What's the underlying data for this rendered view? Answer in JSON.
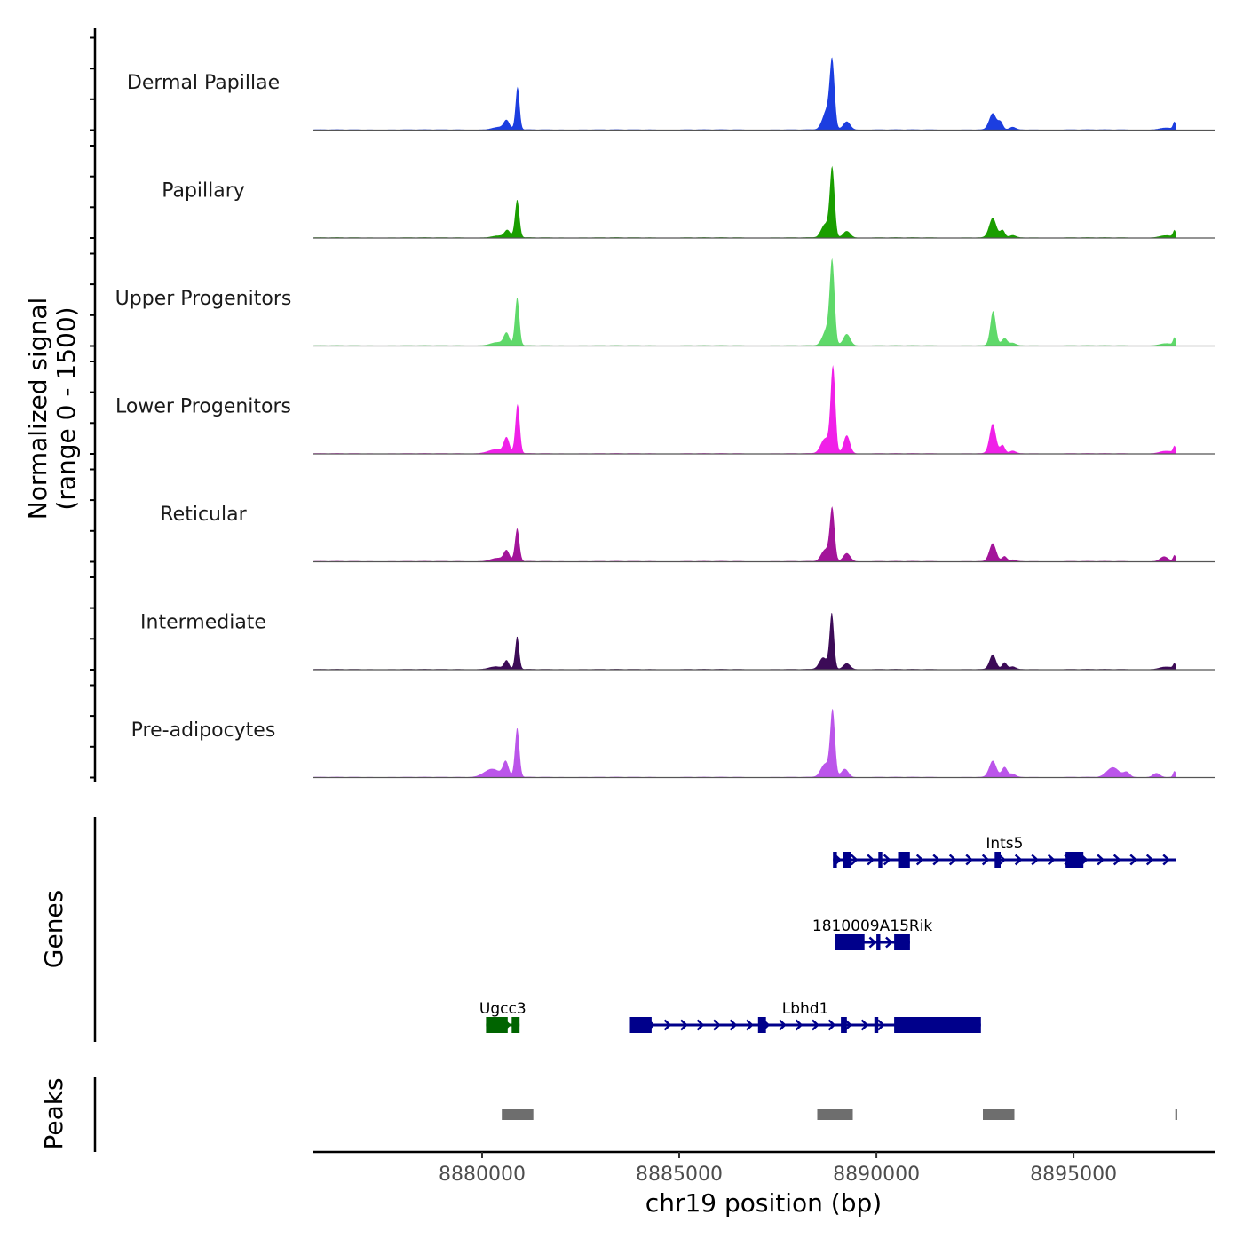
{
  "chart_data": {
    "type": "area",
    "title": "",
    "ylabel_line1": "Normalized signal",
    "ylabel_line2": "(range 0 - 1500)",
    "ylim": [
      0,
      1500
    ],
    "genes_label": "Genes",
    "peaks_label": "Peaks",
    "xlabel": "chr19 position (bp)",
    "xlim": [
      8875700,
      8898600
    ],
    "x_ticks": [
      8880000,
      8885000,
      8890000,
      8895000
    ],
    "x_tick_labels": [
      "8880000",
      "8885000",
      "8890000",
      "8895000"
    ],
    "signal_x_range": [
      8875700,
      8897600
    ],
    "tracks": [
      {
        "name": "Dermal Papillae",
        "color": "#1c3ee0",
        "peaks": [
          [
            8880450,
            8,
            180
          ],
          [
            8880620,
            25,
            70
          ],
          [
            8880900,
            130,
            50
          ],
          [
            8888750,
            60,
            110
          ],
          [
            8888880,
            190,
            60
          ],
          [
            8889250,
            25,
            90
          ],
          [
            8892950,
            50,
            90
          ],
          [
            8893150,
            22,
            60
          ],
          [
            8893450,
            8,
            80
          ],
          [
            8897350,
            6,
            150
          ],
          [
            8897560,
            22,
            35
          ]
        ]
      },
      {
        "name": "Papillary",
        "color": "#1a9e00",
        "peaks": [
          [
            8880450,
            6,
            180
          ],
          [
            8880640,
            20,
            70
          ],
          [
            8880890,
            115,
            55
          ],
          [
            8888700,
            40,
            100
          ],
          [
            8888880,
            210,
            60
          ],
          [
            8889250,
            20,
            90
          ],
          [
            8892950,
            60,
            90
          ],
          [
            8893200,
            22,
            60
          ],
          [
            8893450,
            7,
            80
          ],
          [
            8897350,
            7,
            150
          ],
          [
            8897560,
            20,
            35
          ]
        ]
      },
      {
        "name": "Upper Progenitors",
        "color": "#5fd96a",
        "peaks": [
          [
            8880400,
            10,
            180
          ],
          [
            8880620,
            35,
            70
          ],
          [
            8880890,
            145,
            55
          ],
          [
            8888750,
            50,
            110
          ],
          [
            8888880,
            240,
            60
          ],
          [
            8889250,
            35,
            90
          ],
          [
            8892960,
            105,
            70
          ],
          [
            8893250,
            22,
            70
          ],
          [
            8893450,
            8,
            80
          ],
          [
            8897350,
            7,
            150
          ],
          [
            8897560,
            22,
            35
          ]
        ]
      },
      {
        "name": "Lower Progenitors",
        "color": "#f020e8",
        "peaks": [
          [
            8880350,
            12,
            200
          ],
          [
            8880620,
            45,
            70
          ],
          [
            8880900,
            150,
            55
          ],
          [
            8888700,
            45,
            110
          ],
          [
            8888900,
            260,
            60
          ],
          [
            8889250,
            55,
            80
          ],
          [
            8892950,
            90,
            80
          ],
          [
            8893200,
            25,
            60
          ],
          [
            8893450,
            8,
            80
          ],
          [
            8897350,
            8,
            150
          ],
          [
            8897560,
            20,
            35
          ]
        ]
      },
      {
        "name": "Reticular",
        "color": "#a3149a",
        "peaks": [
          [
            8880400,
            10,
            180
          ],
          [
            8880620,
            30,
            70
          ],
          [
            8880890,
            100,
            55
          ],
          [
            8888700,
            35,
            100
          ],
          [
            8888880,
            160,
            60
          ],
          [
            8889250,
            25,
            90
          ],
          [
            8892950,
            55,
            85
          ],
          [
            8893250,
            15,
            60
          ],
          [
            8893450,
            5,
            80
          ],
          [
            8897300,
            15,
            100
          ],
          [
            8897560,
            18,
            35
          ]
        ]
      },
      {
        "name": "Intermediate",
        "color": "#3c0b57",
        "peaks": [
          [
            8880350,
            8,
            180
          ],
          [
            8880620,
            25,
            60
          ],
          [
            8880890,
            100,
            50
          ],
          [
            8888650,
            35,
            100
          ],
          [
            8888870,
            170,
            55
          ],
          [
            8889250,
            18,
            90
          ],
          [
            8892950,
            45,
            80
          ],
          [
            8893250,
            20,
            60
          ],
          [
            8893450,
            8,
            80
          ],
          [
            8897350,
            8,
            150
          ],
          [
            8897560,
            15,
            35
          ]
        ]
      },
      {
        "name": "Pre-adipocytes",
        "color": "#bb55ea",
        "peaks": [
          [
            8880250,
            25,
            200
          ],
          [
            8880600,
            45,
            70
          ],
          [
            8880890,
            150,
            55
          ],
          [
            8888700,
            40,
            110
          ],
          [
            8888890,
            200,
            60
          ],
          [
            8889200,
            25,
            90
          ],
          [
            8892950,
            50,
            90
          ],
          [
            8893250,
            30,
            70
          ],
          [
            8893450,
            10,
            80
          ],
          [
            8896000,
            30,
            150
          ],
          [
            8896350,
            15,
            80
          ],
          [
            8897100,
            12,
            90
          ],
          [
            8897560,
            18,
            35
          ]
        ]
      }
    ],
    "genes": [
      {
        "name": "Ints5",
        "color": "#00008b",
        "row": 1,
        "strand": "+",
        "start": 8888900,
        "end": 8897600,
        "exons": [
          [
            8888900,
            8889000
          ],
          [
            8889150,
            8889350
          ],
          [
            8890050,
            8890150
          ],
          [
            8890550,
            8890850
          ],
          [
            8893000,
            8893150
          ],
          [
            8894800,
            8895250
          ]
        ]
      },
      {
        "name": "1810009A15Rik",
        "color": "#00008b",
        "row": 2,
        "strand": "+",
        "start": 8888950,
        "end": 8890850,
        "exons": [
          [
            8888950,
            8889700
          ],
          [
            8890000,
            8890100
          ],
          [
            8890450,
            8890850
          ]
        ]
      },
      {
        "name": "Ugcc3",
        "color": "#006400",
        "row": 3,
        "strand": "+",
        "start": 8880100,
        "end": 8880950,
        "exons": [
          [
            8880100,
            8880650
          ],
          [
            8880750,
            8880950
          ]
        ]
      },
      {
        "name": "Lbhd1",
        "color": "#00008b",
        "row": 3,
        "strand": "+",
        "start": 8883750,
        "end": 8892650,
        "exons": [
          [
            8883750,
            8884300
          ],
          [
            8887000,
            8887200
          ],
          [
            8889100,
            8889250
          ],
          [
            8889950,
            8890050
          ],
          [
            8890450,
            8892650
          ]
        ]
      }
    ],
    "peaks": [
      [
        8880500,
        8881300
      ],
      [
        8888500,
        8889400
      ],
      [
        8892700,
        8893500
      ],
      [
        8897580,
        8897630
      ]
    ],
    "peaks_color": "#6e6e6e"
  }
}
